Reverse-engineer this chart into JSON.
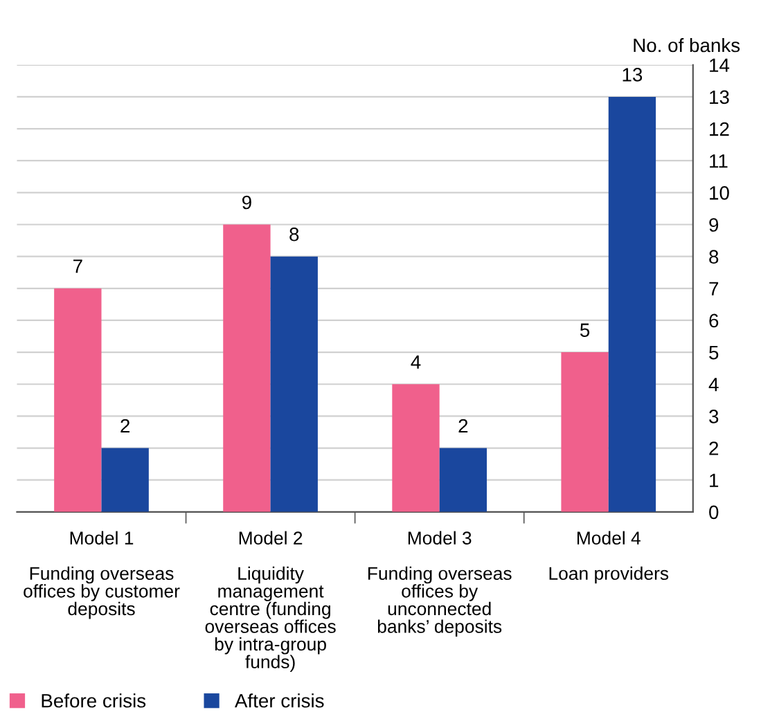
{
  "chart_data": {
    "type": "bar",
    "ylabel": "No. of banks",
    "categories": [
      "Model 1\n\nFunding overseas\noffices by customer\ndeposits",
      "Model 2\n\nLiquidity\nmanagement\ncentre (funding\noverseas offices\nby intra-group\nfunds)",
      "Model 3\n\nFunding overseas\noffices by\nunconnected\nbanks’ deposits",
      "Model 4\n\nLoan providers"
    ],
    "series": [
      {
        "name": "Before crisis",
        "color": "#f0608c",
        "values": [
          7,
          9,
          4,
          5
        ]
      },
      {
        "name": "After crisis",
        "color": "#1a479e",
        "values": [
          2,
          8,
          2,
          13
        ]
      }
    ],
    "ylim": [
      0,
      14
    ],
    "yticks": [
      0,
      1,
      2,
      3,
      4,
      5,
      6,
      7,
      8,
      9,
      10,
      11,
      12,
      13,
      14
    ],
    "grid": "y",
    "legend": "bottom left",
    "data_labels": true
  }
}
